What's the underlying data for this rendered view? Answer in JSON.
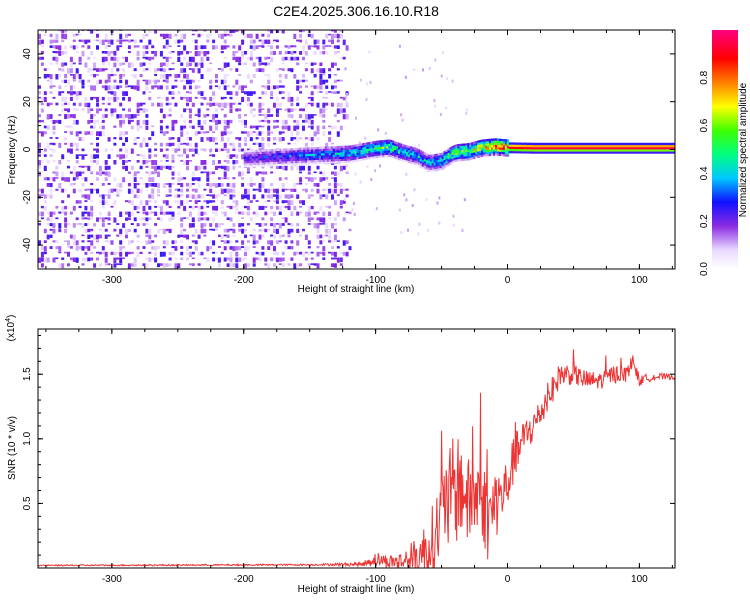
{
  "title": "C2E4.2025.306.16.10.R18",
  "chart_data": [
    {
      "type": "heatmap",
      "name": "spectrogram",
      "xlabel": "Height of straight line (km)",
      "ylabel": "Frequency (Hz)",
      "xlim": [
        -356,
        127
      ],
      "ylim": [
        -50,
        50
      ],
      "xticks": [
        -300,
        -200,
        -100,
        0,
        100
      ],
      "yticks": [
        -40,
        -20,
        0,
        20,
        40
      ],
      "colorbar": {
        "label": "Normalized spectral amplitude",
        "range": [
          0,
          1
        ],
        "ticks": [
          "0.0",
          "0.2",
          "0.4",
          "0.6",
          "0.8"
        ],
        "tick_values": [
          0,
          0.2,
          0.4,
          0.6,
          0.8
        ]
      },
      "ridge": {
        "x": [
          -200,
          -180,
          -160,
          -140,
          -120,
          -100,
          -90,
          -80,
          -70,
          -60,
          -50,
          -45,
          -40,
          -30,
          -20,
          -10,
          0,
          20,
          60,
          100,
          127
        ],
        "freq": [
          -4,
          -3.5,
          -3,
          -2.5,
          -2,
          0,
          0.5,
          -1.5,
          -3,
          -6,
          -5,
          -3,
          -1.5,
          -1,
          0.5,
          1,
          0.5,
          0.3,
          0.3,
          0.3,
          0.3
        ],
        "amplitude": [
          0.25,
          0.3,
          0.35,
          0.4,
          0.45,
          0.55,
          0.6,
          0.5,
          0.45,
          0.45,
          0.5,
          0.6,
          0.65,
          0.7,
          0.8,
          0.9,
          0.95,
          1.0,
          1.0,
          1.0,
          1.0
        ]
      },
      "noise_region": {
        "x_from": -356,
        "x_to": -120,
        "amplitude": [
          0.05,
          0.25
        ]
      }
    },
    {
      "type": "line",
      "name": "snr",
      "xlabel": "Height of straight line (km)",
      "ylabel": "SNR (10 * v/v)",
      "y_multiplier_label": "(x10",
      "y_multiplier_exp": "4",
      "xlim": [
        -356,
        127
      ],
      "ylim": [
        0,
        18500
      ],
      "xticks": [
        -300,
        -200,
        -100,
        0,
        100
      ],
      "yticks": [
        5000,
        10000,
        15000
      ],
      "ytick_labels": [
        "0.5",
        "1.0",
        "1.5"
      ],
      "series": [
        {
          "name": "SNR",
          "color": "#ee3333",
          "x": [
            -356,
            -150,
            -110,
            -100,
            -90,
            -80,
            -70,
            -60,
            -55,
            -50,
            -45,
            -40,
            -35,
            -30,
            -25,
            -20,
            -15,
            -10,
            -5,
            0,
            5,
            10,
            15,
            20,
            25,
            30,
            35,
            40,
            50,
            60,
            70,
            80,
            90,
            95,
            100,
            110,
            127
          ],
          "y": [
            200,
            250,
            300,
            700,
            500,
            500,
            800,
            1500,
            2500,
            4000,
            5000,
            6000,
            6500,
            5000,
            5500,
            6000,
            3500,
            5000,
            5500,
            6500,
            8500,
            9500,
            10500,
            11000,
            12000,
            13000,
            14000,
            15000,
            15000,
            14500,
            14500,
            15000,
            15000,
            16000,
            14500,
            14800,
            14800
          ],
          "noise": [
            50,
            60,
            150,
            600,
            500,
            800,
            1500,
            2500,
            3000,
            3500,
            4000,
            4500,
            4000,
            3500,
            3500,
            3500,
            3000,
            3000,
            2500,
            2000,
            1800,
            1600,
            1400,
            1400,
            1200,
            1200,
            1000,
            1000,
            800,
            800,
            700,
            700,
            600,
            600,
            400,
            300,
            200
          ]
        }
      ]
    }
  ]
}
